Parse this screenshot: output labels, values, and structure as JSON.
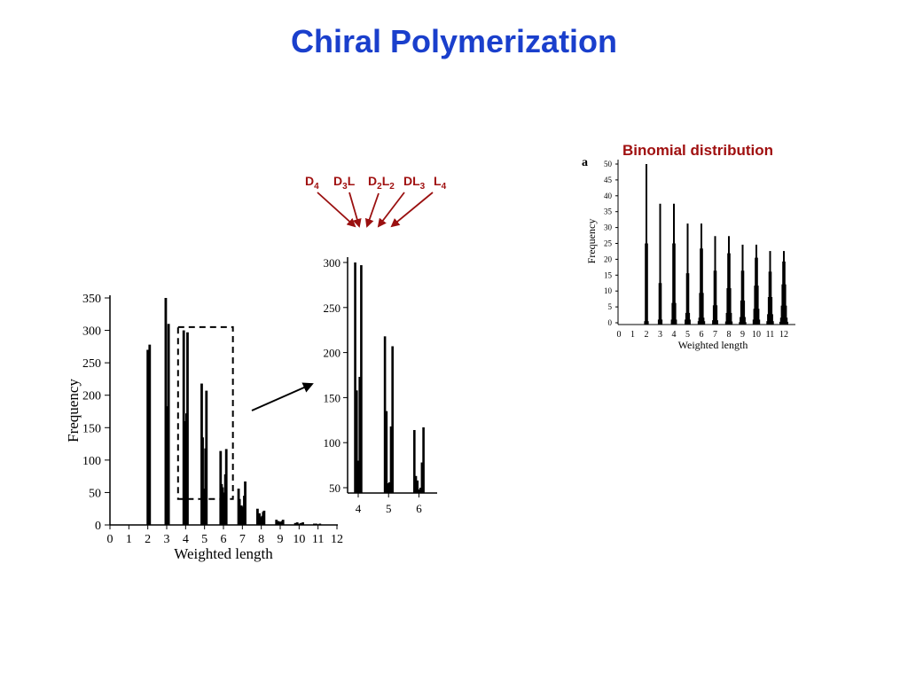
{
  "title": "Chiral Polymerization",
  "binomial_heading": "Binomial distribution",
  "isomer_labels": [
    {
      "main": "D",
      "sub": "4",
      "tail": ""
    },
    {
      "main": "D",
      "sub": "3",
      "tail": "L"
    },
    {
      "main": "D",
      "sub": "2",
      "tail": "L",
      "sub2": "2"
    },
    {
      "main": "DL",
      "sub": "3",
      "tail": ""
    },
    {
      "main": "L",
      "sub": "4",
      "tail": ""
    }
  ],
  "colors": {
    "title": "#1a3fcc",
    "annotation": "#a01010",
    "bars": "#000000",
    "arrows": "#9a1010"
  },
  "chart_data": [
    {
      "type": "bar",
      "id": "main",
      "xlabel": "Weighted length",
      "ylabel": "Frequency",
      "xlim": [
        0,
        12
      ],
      "ylim": [
        0,
        350
      ],
      "xticks": [
        "0",
        "1",
        "2",
        "3",
        "4",
        "5",
        "6",
        "7",
        "8",
        "9",
        "10",
        "11",
        "12"
      ],
      "yticks": [
        "0",
        "50",
        "100",
        "150",
        "200",
        "250",
        "300",
        "350"
      ],
      "bars": [
        {
          "x": 2.0,
          "y": 270
        },
        {
          "x": 2.05,
          "y": 193
        },
        {
          "x": 2.1,
          "y": 278
        },
        {
          "x": 2.95,
          "y": 350
        },
        {
          "x": 3.0,
          "y": 183
        },
        {
          "x": 3.05,
          "y": 178
        },
        {
          "x": 3.1,
          "y": 310
        },
        {
          "x": 3.9,
          "y": 300
        },
        {
          "x": 3.95,
          "y": 160
        },
        {
          "x": 4.0,
          "y": 80
        },
        {
          "x": 4.05,
          "y": 172
        },
        {
          "x": 4.1,
          "y": 297
        },
        {
          "x": 4.85,
          "y": 218
        },
        {
          "x": 4.9,
          "y": 135
        },
        {
          "x": 4.95,
          "y": 55
        },
        {
          "x": 5.0,
          "y": 56
        },
        {
          "x": 5.05,
          "y": 118
        },
        {
          "x": 5.1,
          "y": 207
        },
        {
          "x": 5.85,
          "y": 114
        },
        {
          "x": 5.9,
          "y": 63
        },
        {
          "x": 5.95,
          "y": 58
        },
        {
          "x": 6.0,
          "y": 47
        },
        {
          "x": 6.05,
          "y": 50
        },
        {
          "x": 6.1,
          "y": 78
        },
        {
          "x": 6.15,
          "y": 117
        },
        {
          "x": 6.8,
          "y": 56
        },
        {
          "x": 6.85,
          "y": 40
        },
        {
          "x": 6.9,
          "y": 25
        },
        {
          "x": 6.95,
          "y": 30
        },
        {
          "x": 7.0,
          "y": 20
        },
        {
          "x": 7.05,
          "y": 28
        },
        {
          "x": 7.1,
          "y": 45
        },
        {
          "x": 7.15,
          "y": 67
        },
        {
          "x": 7.8,
          "y": 25
        },
        {
          "x": 7.85,
          "y": 15
        },
        {
          "x": 7.9,
          "y": 18
        },
        {
          "x": 7.95,
          "y": 10
        },
        {
          "x": 8.0,
          "y": 12
        },
        {
          "x": 8.05,
          "y": 14
        },
        {
          "x": 8.1,
          "y": 20
        },
        {
          "x": 8.15,
          "y": 22
        },
        {
          "x": 8.8,
          "y": 8
        },
        {
          "x": 8.85,
          "y": 5
        },
        {
          "x": 8.9,
          "y": 6
        },
        {
          "x": 8.95,
          "y": 4
        },
        {
          "x": 9.0,
          "y": 5
        },
        {
          "x": 9.05,
          "y": 4
        },
        {
          "x": 9.1,
          "y": 6
        },
        {
          "x": 9.15,
          "y": 8
        },
        {
          "x": 9.8,
          "y": 3
        },
        {
          "x": 9.9,
          "y": 4
        },
        {
          "x": 10.0,
          "y": 2
        },
        {
          "x": 10.1,
          "y": 3
        },
        {
          "x": 10.2,
          "y": 4
        },
        {
          "x": 10.8,
          "y": 2
        },
        {
          "x": 10.9,
          "y": 2
        },
        {
          "x": 11.0,
          "y": 1
        },
        {
          "x": 11.1,
          "y": 2
        }
      ],
      "highlight_box": {
        "x": [
          3.6,
          6.5
        ],
        "y": [
          40,
          305
        ]
      }
    },
    {
      "type": "bar",
      "id": "zoom",
      "xlim": [
        3.65,
        6.6
      ],
      "ylim": [
        45,
        305
      ],
      "xticks": [
        "4",
        "5",
        "6"
      ],
      "yticks": [
        "50",
        "100",
        "150",
        "200",
        "250",
        "300"
      ],
      "bars": [
        {
          "x": 3.9,
          "y": 300
        },
        {
          "x": 3.95,
          "y": 158
        },
        {
          "x": 4.0,
          "y": 80
        },
        {
          "x": 4.05,
          "y": 173
        },
        {
          "x": 4.1,
          "y": 297
        },
        {
          "x": 4.88,
          "y": 218
        },
        {
          "x": 4.93,
          "y": 135
        },
        {
          "x": 4.98,
          "y": 55
        },
        {
          "x": 5.03,
          "y": 56
        },
        {
          "x": 5.08,
          "y": 118
        },
        {
          "x": 5.13,
          "y": 207
        },
        {
          "x": 5.85,
          "y": 114
        },
        {
          "x": 5.9,
          "y": 63
        },
        {
          "x": 5.95,
          "y": 58
        },
        {
          "x": 6.0,
          "y": 48
        },
        {
          "x": 6.05,
          "y": 50
        },
        {
          "x": 6.1,
          "y": 78
        },
        {
          "x": 6.15,
          "y": 117
        }
      ]
    },
    {
      "type": "bar",
      "id": "binomial",
      "panel_label": "a",
      "xlabel": "Weighted length",
      "ylabel": "Frequency",
      "xlim": [
        0,
        12
      ],
      "ylim": [
        0,
        50
      ],
      "xticks": [
        "0",
        "1",
        "2",
        "3",
        "4",
        "5",
        "6",
        "7",
        "8",
        "9",
        "10",
        "11",
        "12"
      ],
      "yticks": [
        "0",
        "5",
        "10",
        "15",
        "20",
        "25",
        "30",
        "35",
        "40",
        "45",
        "50"
      ],
      "groups": [
        {
          "x": 2,
          "values": [
            50,
            25,
            0.5
          ]
        },
        {
          "x": 3,
          "values": [
            37.5,
            12.5,
            1
          ]
        },
        {
          "x": 4,
          "values": [
            37.5,
            25,
            6.25,
            1
          ]
        },
        {
          "x": 5,
          "values": [
            31.25,
            15.6,
            3.1,
            1
          ]
        },
        {
          "x": 6,
          "values": [
            31.25,
            23.4,
            9.4,
            1.6,
            0.5
          ]
        },
        {
          "x": 7,
          "values": [
            27.3,
            16.4,
            5.5,
            0.8
          ]
        },
        {
          "x": 8,
          "values": [
            27.3,
            21.9,
            10.9,
            3.1,
            0.4
          ]
        },
        {
          "x": 9,
          "values": [
            24.6,
            16.4,
            7.0,
            1.8,
            0.2
          ]
        },
        {
          "x": 10,
          "values": [
            24.6,
            20.5,
            11.7,
            4.4,
            1.0
          ]
        },
        {
          "x": 11,
          "values": [
            22.6,
            16.1,
            8.1,
            2.7,
            0.5
          ]
        },
        {
          "x": 12,
          "values": [
            22.6,
            19.3,
            12.1,
            5.4,
            1.6,
            0.3
          ]
        }
      ]
    }
  ]
}
